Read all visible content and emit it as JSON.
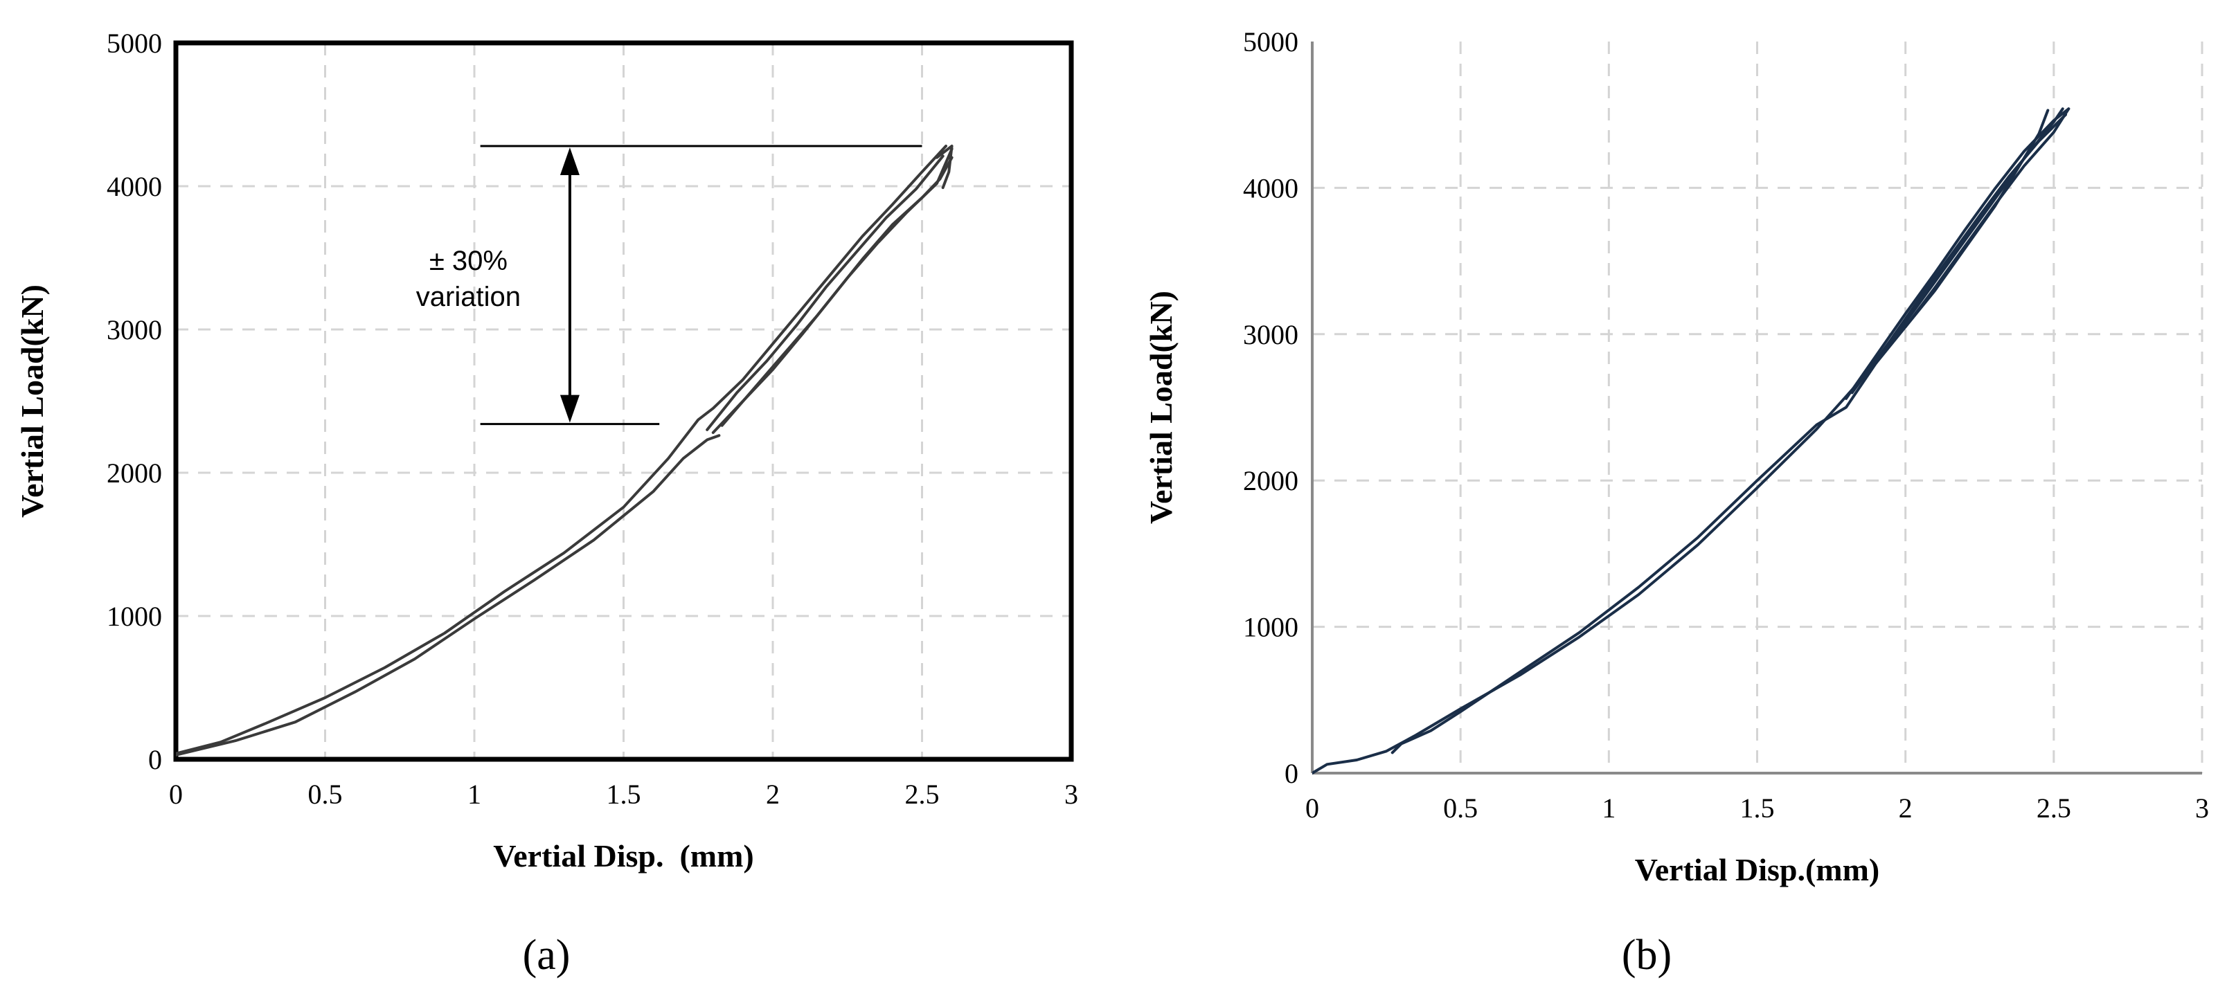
{
  "chart_data": [
    {
      "type": "line",
      "panel_label": "(a)",
      "title": "",
      "xlabel": "Vertial Disp.  (mm)",
      "ylabel": "Vertial Load(kN)",
      "xlim": [
        0,
        3
      ],
      "ylim": [
        0,
        5000
      ],
      "x_ticks": [
        "0",
        "0.5",
        "1",
        "1.5",
        "2",
        "2.5",
        "3"
      ],
      "y_ticks": [
        "0",
        "1000",
        "2000",
        "3000",
        "4000",
        "5000"
      ],
      "grid": true,
      "frame": "box",
      "line_color": "#3a3a3a",
      "annotation": {
        "text_lines": [
          "± 30%",
          "variation"
        ],
        "upper_load": 4280,
        "lower_load": 2340,
        "arrow_x": 1.32,
        "line_upper_x": [
          1.02,
          2.5
        ],
        "line_lower_x": [
          1.02,
          1.62
        ],
        "text_x": 0.98
      },
      "series": [
        {
          "x": [
            0,
            0.15,
            0.3,
            0.5,
            0.7,
            0.9,
            1.1,
            1.3,
            1.5,
            1.65,
            1.75,
            1.8,
            1.9,
            2.0,
            2.1,
            2.2,
            2.3,
            2.4,
            2.5,
            2.58
          ],
          "y": [
            40,
            120,
            250,
            430,
            640,
            880,
            1170,
            1440,
            1760,
            2100,
            2370,
            2450,
            2650,
            2900,
            3150,
            3400,
            3650,
            3870,
            4100,
            4280
          ]
        },
        {
          "x": [
            0,
            0.2,
            0.4,
            0.6,
            0.8,
            1.0,
            1.2,
            1.4,
            1.6,
            1.7,
            1.78,
            1.82
          ],
          "y": [
            30,
            130,
            260,
            470,
            700,
            980,
            1250,
            1530,
            1870,
            2100,
            2230,
            2260
          ]
        },
        {
          "x": [
            1.8,
            1.9,
            2.0,
            2.1,
            2.2,
            2.3,
            2.4,
            2.5,
            2.56,
            2.6
          ],
          "y": [
            2280,
            2500,
            2720,
            2970,
            3230,
            3490,
            3730,
            3920,
            4050,
            4200
          ]
        },
        {
          "x": [
            1.83,
            1.95,
            2.05,
            2.15,
            2.25,
            2.35,
            2.45,
            2.55,
            2.6
          ],
          "y": [
            2330,
            2620,
            2860,
            3100,
            3360,
            3600,
            3820,
            4020,
            4260
          ]
        },
        {
          "x": [
            1.78,
            1.88,
            1.98,
            2.08,
            2.18,
            2.28,
            2.38,
            2.48,
            2.57
          ],
          "y": [
            2300,
            2560,
            2780,
            3030,
            3300,
            3540,
            3780,
            3980,
            4210
          ]
        },
        {
          "x": [
            2.55,
            2.6,
            2.59,
            2.57
          ],
          "y": [
            4200,
            4280,
            4100,
            3990
          ]
        }
      ]
    },
    {
      "type": "line",
      "panel_label": "(b)",
      "title": "",
      "xlabel": "Vertial Disp.(mm)",
      "ylabel": "Vertial Load(kN)",
      "xlim": [
        0,
        3
      ],
      "ylim": [
        0,
        5000
      ],
      "x_ticks": [
        "0",
        "0.5",
        "1",
        "1.5",
        "2",
        "2.5",
        "3"
      ],
      "y_ticks": [
        "0",
        "1000",
        "2000",
        "3000",
        "4000",
        "5000"
      ],
      "grid": true,
      "frame": "left-bottom",
      "line_color": "#1a2e48",
      "series": [
        {
          "x": [
            0,
            0.05,
            0.15,
            0.25,
            0.35,
            0.5,
            0.7,
            0.9,
            1.1,
            1.3,
            1.5,
            1.7,
            1.9,
            2.1,
            2.3,
            2.45,
            2.48
          ],
          "y": [
            0,
            60,
            90,
            150,
            260,
            440,
            670,
            930,
            1220,
            1560,
            1950,
            2350,
            2800,
            3300,
            3870,
            4370,
            4530
          ]
        },
        {
          "x": [
            0.27,
            0.3,
            0.4,
            0.5,
            0.7,
            0.9,
            1.1,
            1.3,
            1.5,
            1.7,
            1.8,
            1.9,
            2.0,
            2.1,
            2.2,
            2.3,
            2.4,
            2.5,
            2.53
          ],
          "y": [
            140,
            200,
            290,
            420,
            690,
            960,
            1270,
            1610,
            2000,
            2380,
            2500,
            2800,
            3080,
            3360,
            3640,
            3920,
            4200,
            4450,
            4540
          ]
        },
        {
          "x": [
            1.8,
            1.9,
            2.0,
            2.1,
            2.2,
            2.3,
            2.4,
            2.5,
            2.55
          ],
          "y": [
            2560,
            2850,
            3140,
            3420,
            3710,
            3990,
            4250,
            4460,
            4540
          ]
        },
        {
          "x": [
            1.82,
            1.95,
            2.05,
            2.15,
            2.25,
            2.35,
            2.45,
            2.54
          ],
          "y": [
            2600,
            2960,
            3250,
            3530,
            3810,
            4080,
            4320,
            4500
          ]
        },
        {
          "x": [
            2.0,
            2.1,
            2.2,
            2.3,
            2.4,
            2.5,
            2.55
          ],
          "y": [
            3050,
            3320,
            3600,
            3880,
            4150,
            4380,
            4540
          ]
        }
      ]
    }
  ]
}
